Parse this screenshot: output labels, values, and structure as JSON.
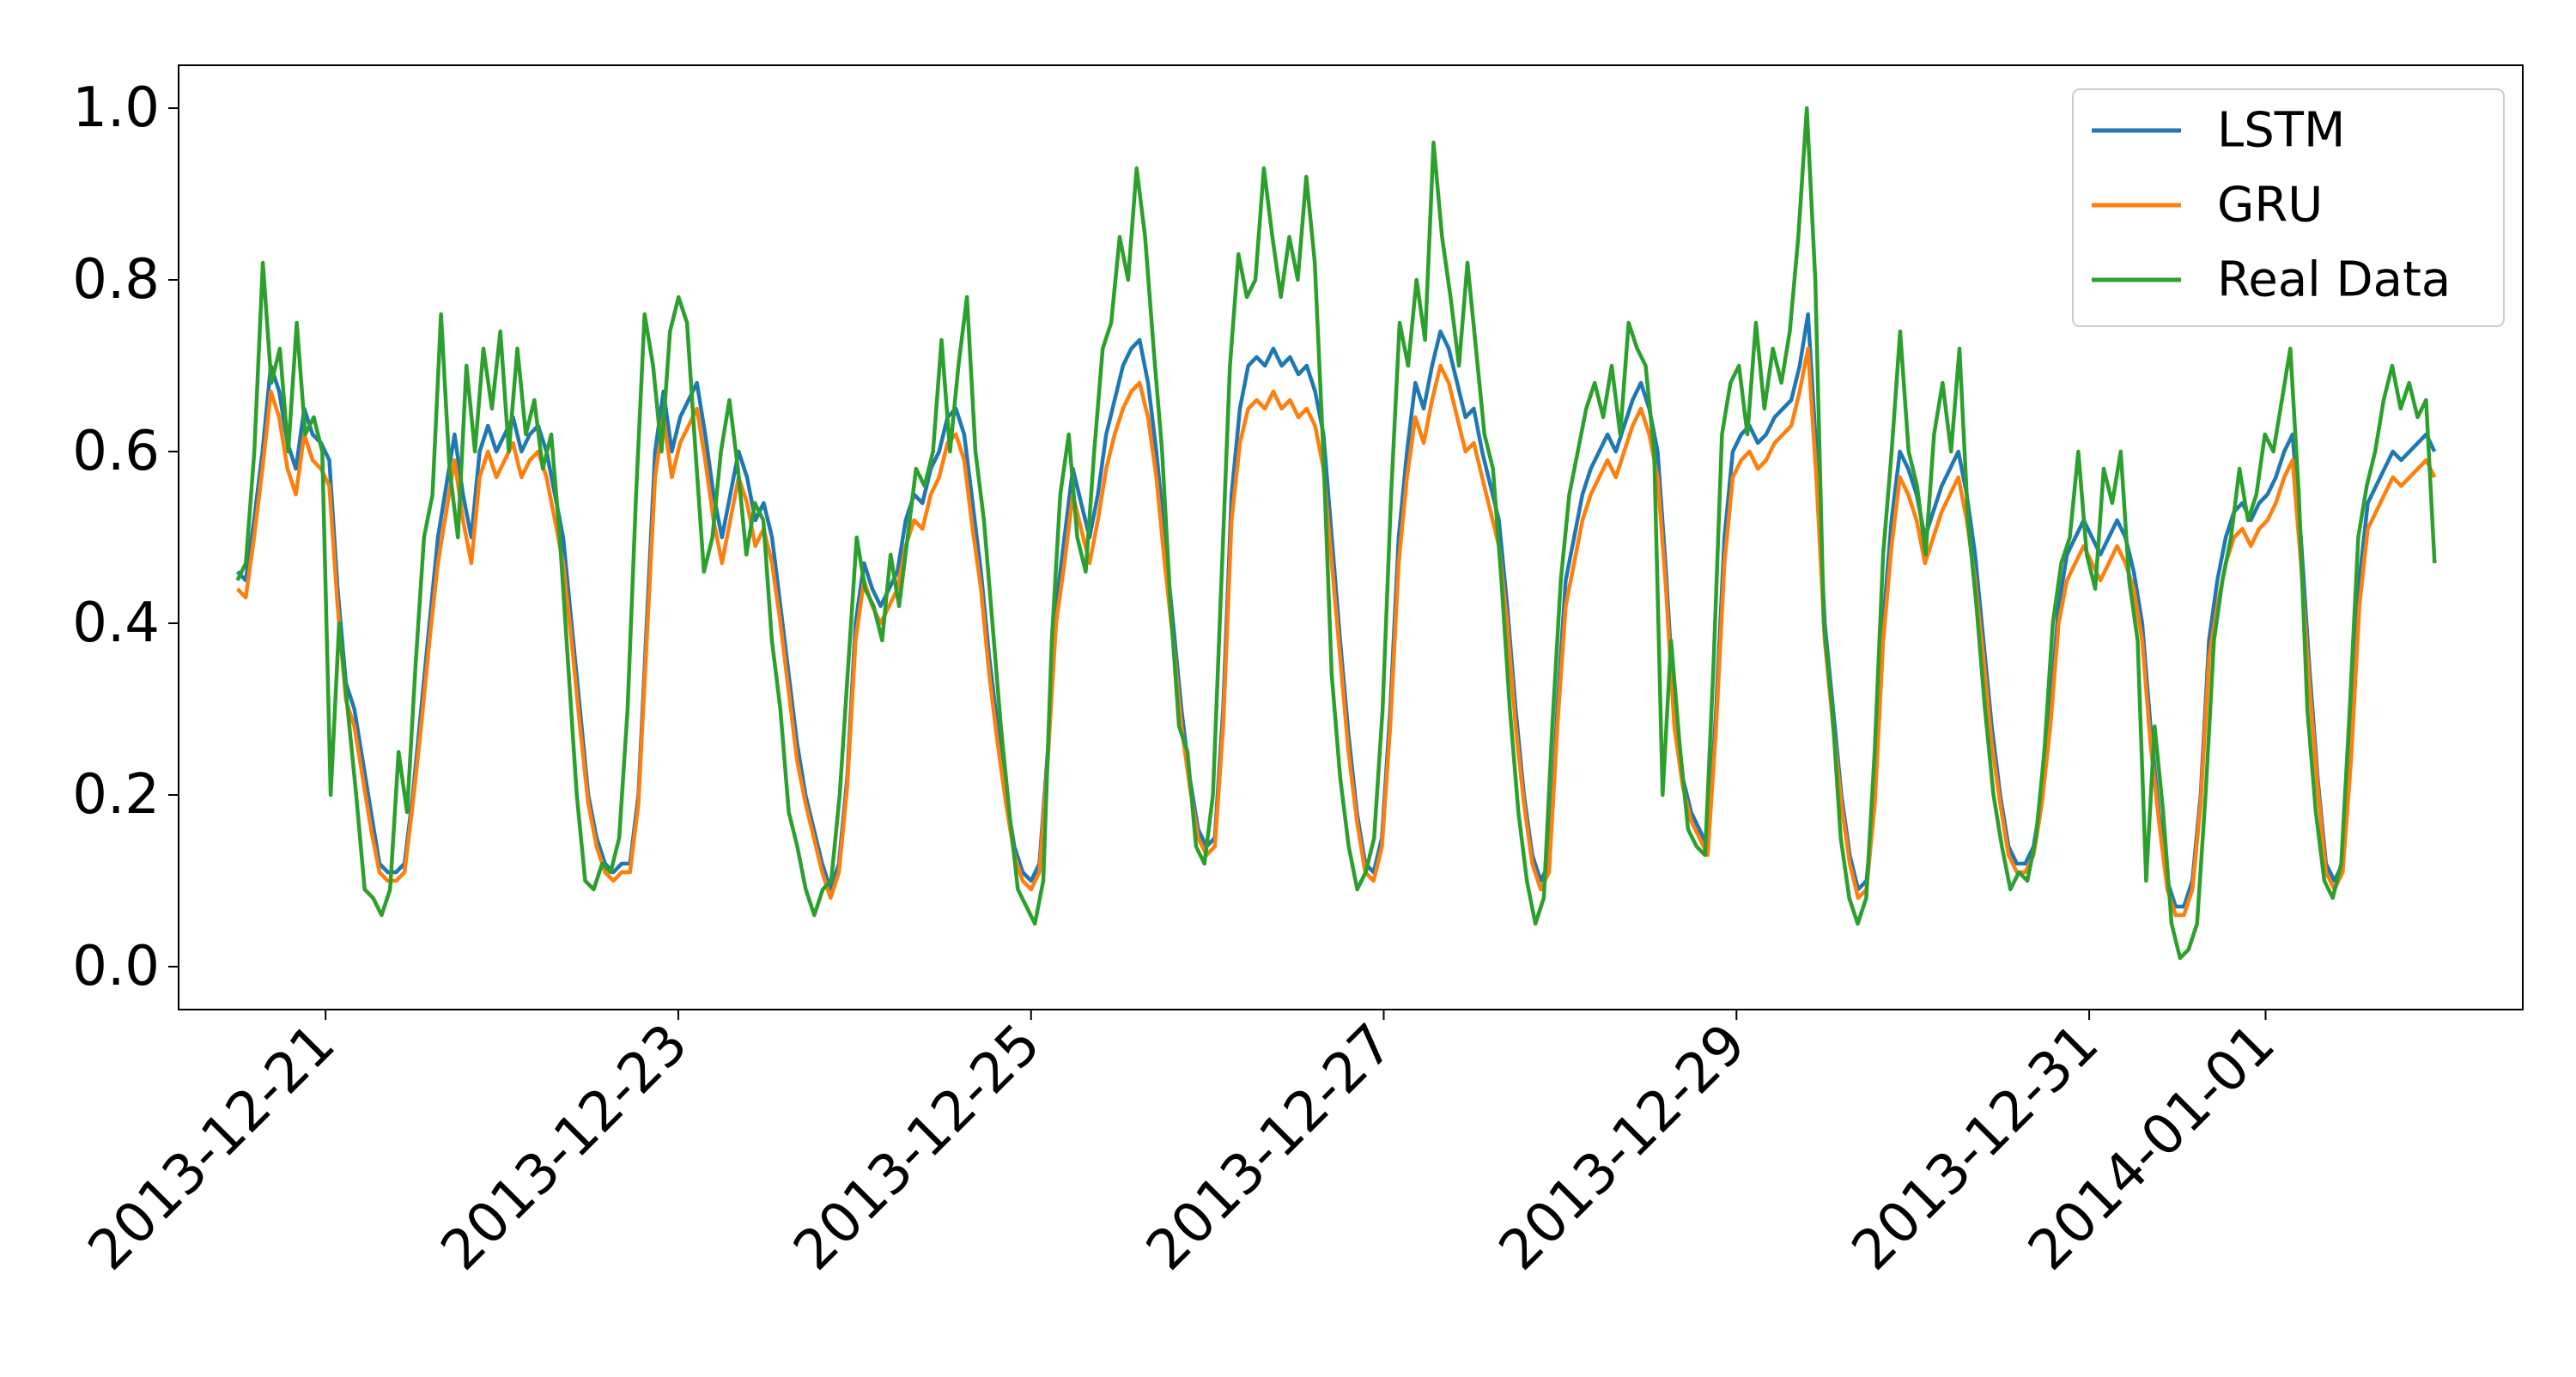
{
  "chart_data": {
    "type": "line",
    "title": "",
    "xlabel": "",
    "ylabel": "",
    "x_axis_type": "date",
    "x_start": "2013-12-20 12:00",
    "x_end": "2014-01-01 23:00",
    "xlim": [
      "2013-12-20 04:00",
      "2014-01-02 11:00"
    ],
    "ylim": [
      -0.05,
      1.05
    ],
    "y_ticks": [
      0.0,
      0.2,
      0.4,
      0.6,
      0.8,
      1.0
    ],
    "y_tick_labels": [
      "0.0",
      "0.2",
      "0.4",
      "0.6",
      "0.8",
      "1.0"
    ],
    "x_ticks": [
      "2013-12-21",
      "2013-12-23",
      "2013-12-25",
      "2013-12-27",
      "2013-12-29",
      "2013-12-31",
      "2014-01-01"
    ],
    "x_tick_labels": [
      "2013-12-21",
      "2013-12-23",
      "2013-12-25",
      "2013-12-27",
      "2013-12-29",
      "2013-12-31",
      "2014-01-01"
    ],
    "grid": false,
    "legend_position": "top-right",
    "series": [
      {
        "name": "LSTM",
        "color": "#1f77b4",
        "values": [
          0.46,
          0.45,
          0.52,
          0.6,
          0.7,
          0.67,
          0.61,
          0.58,
          0.65,
          0.62,
          0.61,
          0.59,
          0.44,
          0.33,
          0.3,
          0.24,
          0.18,
          0.12,
          0.11,
          0.11,
          0.12,
          0.2,
          0.3,
          0.4,
          0.5,
          0.56,
          0.62,
          0.55,
          0.5,
          0.6,
          0.63,
          0.6,
          0.62,
          0.64,
          0.6,
          0.62,
          0.63,
          0.6,
          0.55,
          0.5,
          0.4,
          0.3,
          0.2,
          0.15,
          0.12,
          0.11,
          0.12,
          0.12,
          0.2,
          0.4,
          0.6,
          0.67,
          0.6,
          0.64,
          0.66,
          0.68,
          0.62,
          0.55,
          0.5,
          0.55,
          0.6,
          0.57,
          0.52,
          0.54,
          0.5,
          0.42,
          0.34,
          0.26,
          0.2,
          0.16,
          0.12,
          0.09,
          0.12,
          0.22,
          0.4,
          0.47,
          0.44,
          0.42,
          0.44,
          0.46,
          0.52,
          0.55,
          0.54,
          0.58,
          0.6,
          0.64,
          0.65,
          0.62,
          0.54,
          0.46,
          0.36,
          0.28,
          0.2,
          0.14,
          0.11,
          0.1,
          0.12,
          0.25,
          0.42,
          0.5,
          0.58,
          0.54,
          0.5,
          0.55,
          0.62,
          0.66,
          0.7,
          0.72,
          0.73,
          0.68,
          0.6,
          0.5,
          0.4,
          0.3,
          0.22,
          0.16,
          0.14,
          0.15,
          0.3,
          0.55,
          0.65,
          0.7,
          0.71,
          0.7,
          0.72,
          0.7,
          0.71,
          0.69,
          0.7,
          0.67,
          0.62,
          0.5,
          0.38,
          0.27,
          0.18,
          0.12,
          0.11,
          0.15,
          0.3,
          0.5,
          0.6,
          0.68,
          0.65,
          0.7,
          0.74,
          0.72,
          0.68,
          0.64,
          0.65,
          0.6,
          0.56,
          0.52,
          0.42,
          0.3,
          0.2,
          0.13,
          0.1,
          0.12,
          0.3,
          0.45,
          0.5,
          0.55,
          0.58,
          0.6,
          0.62,
          0.6,
          0.63,
          0.66,
          0.68,
          0.65,
          0.6,
          0.46,
          0.3,
          0.22,
          0.18,
          0.16,
          0.14,
          0.3,
          0.5,
          0.6,
          0.62,
          0.63,
          0.61,
          0.62,
          0.64,
          0.65,
          0.66,
          0.7,
          0.76,
          0.6,
          0.4,
          0.3,
          0.2,
          0.13,
          0.09,
          0.1,
          0.2,
          0.4,
          0.52,
          0.6,
          0.58,
          0.55,
          0.5,
          0.53,
          0.56,
          0.58,
          0.6,
          0.55,
          0.48,
          0.38,
          0.28,
          0.2,
          0.14,
          0.12,
          0.12,
          0.14,
          0.2,
          0.3,
          0.42,
          0.48,
          0.5,
          0.52,
          0.5,
          0.48,
          0.5,
          0.52,
          0.5,
          0.46,
          0.4,
          0.28,
          0.18,
          0.1,
          0.07,
          0.07,
          0.1,
          0.2,
          0.38,
          0.45,
          0.5,
          0.53,
          0.54,
          0.52,
          0.54,
          0.55,
          0.57,
          0.6,
          0.62,
          0.5,
          0.35,
          0.22,
          0.12,
          0.1,
          0.12,
          0.25,
          0.45,
          0.54,
          0.56,
          0.58,
          0.6,
          0.59,
          0.6,
          0.61,
          0.62,
          0.6
        ]
      },
      {
        "name": "GRU",
        "color": "#ff7f0e",
        "values": [
          0.44,
          0.43,
          0.5,
          0.58,
          0.67,
          0.64,
          0.58,
          0.55,
          0.62,
          0.59,
          0.58,
          0.56,
          0.42,
          0.31,
          0.28,
          0.22,
          0.16,
          0.11,
          0.1,
          0.1,
          0.11,
          0.19,
          0.28,
          0.38,
          0.47,
          0.53,
          0.59,
          0.52,
          0.47,
          0.57,
          0.6,
          0.57,
          0.59,
          0.61,
          0.57,
          0.59,
          0.6,
          0.57,
          0.52,
          0.47,
          0.38,
          0.28,
          0.19,
          0.14,
          0.11,
          0.1,
          0.11,
          0.11,
          0.19,
          0.38,
          0.57,
          0.64,
          0.57,
          0.61,
          0.63,
          0.65,
          0.59,
          0.52,
          0.47,
          0.52,
          0.57,
          0.54,
          0.49,
          0.51,
          0.47,
          0.4,
          0.32,
          0.24,
          0.19,
          0.15,
          0.11,
          0.08,
          0.11,
          0.21,
          0.38,
          0.45,
          0.42,
          0.4,
          0.42,
          0.44,
          0.49,
          0.52,
          0.51,
          0.55,
          0.57,
          0.61,
          0.62,
          0.59,
          0.51,
          0.44,
          0.34,
          0.26,
          0.19,
          0.13,
          0.1,
          0.09,
          0.11,
          0.24,
          0.4,
          0.47,
          0.55,
          0.51,
          0.47,
          0.52,
          0.58,
          0.62,
          0.65,
          0.67,
          0.68,
          0.64,
          0.57,
          0.47,
          0.38,
          0.28,
          0.21,
          0.15,
          0.13,
          0.14,
          0.28,
          0.52,
          0.61,
          0.65,
          0.66,
          0.65,
          0.67,
          0.65,
          0.66,
          0.64,
          0.65,
          0.63,
          0.58,
          0.47,
          0.36,
          0.25,
          0.17,
          0.11,
          0.1,
          0.14,
          0.28,
          0.47,
          0.57,
          0.64,
          0.61,
          0.66,
          0.7,
          0.68,
          0.64,
          0.6,
          0.61,
          0.57,
          0.53,
          0.49,
          0.4,
          0.28,
          0.19,
          0.12,
          0.09,
          0.11,
          0.28,
          0.42,
          0.47,
          0.52,
          0.55,
          0.57,
          0.59,
          0.57,
          0.6,
          0.63,
          0.65,
          0.62,
          0.57,
          0.44,
          0.28,
          0.21,
          0.17,
          0.15,
          0.13,
          0.28,
          0.47,
          0.57,
          0.59,
          0.6,
          0.58,
          0.59,
          0.61,
          0.62,
          0.63,
          0.67,
          0.72,
          0.57,
          0.38,
          0.28,
          0.19,
          0.12,
          0.08,
          0.09,
          0.19,
          0.38,
          0.49,
          0.57,
          0.55,
          0.52,
          0.47,
          0.5,
          0.53,
          0.55,
          0.57,
          0.52,
          0.45,
          0.36,
          0.26,
          0.19,
          0.13,
          0.11,
          0.11,
          0.13,
          0.19,
          0.28,
          0.4,
          0.45,
          0.47,
          0.49,
          0.47,
          0.45,
          0.47,
          0.49,
          0.47,
          0.44,
          0.38,
          0.26,
          0.17,
          0.09,
          0.06,
          0.06,
          0.09,
          0.19,
          0.36,
          0.42,
          0.47,
          0.5,
          0.51,
          0.49,
          0.51,
          0.52,
          0.54,
          0.57,
          0.59,
          0.47,
          0.33,
          0.21,
          0.11,
          0.09,
          0.11,
          0.24,
          0.42,
          0.51,
          0.53,
          0.55,
          0.57,
          0.56,
          0.57,
          0.58,
          0.59,
          0.57
        ]
      },
      {
        "name": "Real Data",
        "color": "#2ca02c",
        "values": [
          0.45,
          0.47,
          0.6,
          0.82,
          0.68,
          0.72,
          0.6,
          0.75,
          0.62,
          0.64,
          0.6,
          0.2,
          0.4,
          0.3,
          0.2,
          0.09,
          0.08,
          0.06,
          0.09,
          0.25,
          0.18,
          0.35,
          0.5,
          0.55,
          0.76,
          0.58,
          0.5,
          0.7,
          0.6,
          0.72,
          0.65,
          0.74,
          0.6,
          0.72,
          0.62,
          0.66,
          0.58,
          0.62,
          0.5,
          0.35,
          0.2,
          0.1,
          0.09,
          0.12,
          0.11,
          0.15,
          0.3,
          0.55,
          0.76,
          0.7,
          0.6,
          0.74,
          0.78,
          0.75,
          0.6,
          0.46,
          0.5,
          0.6,
          0.66,
          0.58,
          0.48,
          0.54,
          0.52,
          0.38,
          0.3,
          0.18,
          0.14,
          0.09,
          0.06,
          0.09,
          0.1,
          0.2,
          0.35,
          0.5,
          0.44,
          0.42,
          0.38,
          0.48,
          0.42,
          0.5,
          0.58,
          0.56,
          0.6,
          0.73,
          0.6,
          0.7,
          0.78,
          0.6,
          0.52,
          0.4,
          0.28,
          0.18,
          0.09,
          0.07,
          0.05,
          0.1,
          0.38,
          0.55,
          0.62,
          0.5,
          0.46,
          0.6,
          0.72,
          0.75,
          0.85,
          0.8,
          0.93,
          0.85,
          0.72,
          0.6,
          0.42,
          0.28,
          0.25,
          0.14,
          0.12,
          0.2,
          0.45,
          0.7,
          0.83,
          0.78,
          0.8,
          0.93,
          0.85,
          0.78,
          0.85,
          0.8,
          0.92,
          0.82,
          0.6,
          0.34,
          0.22,
          0.14,
          0.09,
          0.11,
          0.15,
          0.3,
          0.55,
          0.75,
          0.7,
          0.8,
          0.73,
          0.96,
          0.85,
          0.78,
          0.7,
          0.82,
          0.72,
          0.62,
          0.58,
          0.45,
          0.3,
          0.18,
          0.1,
          0.05,
          0.08,
          0.28,
          0.45,
          0.55,
          0.6,
          0.65,
          0.68,
          0.64,
          0.7,
          0.62,
          0.75,
          0.72,
          0.7,
          0.6,
          0.2,
          0.38,
          0.26,
          0.16,
          0.14,
          0.13,
          0.35,
          0.62,
          0.68,
          0.7,
          0.62,
          0.75,
          0.65,
          0.72,
          0.68,
          0.74,
          0.85,
          1.0,
          0.8,
          0.4,
          0.3,
          0.15,
          0.08,
          0.05,
          0.08,
          0.25,
          0.48,
          0.6,
          0.74,
          0.6,
          0.56,
          0.48,
          0.62,
          0.68,
          0.6,
          0.72,
          0.52,
          0.42,
          0.3,
          0.2,
          0.14,
          0.09,
          0.11,
          0.1,
          0.15,
          0.25,
          0.4,
          0.47,
          0.5,
          0.6,
          0.48,
          0.44,
          0.58,
          0.54,
          0.6,
          0.45,
          0.38,
          0.1,
          0.28,
          0.18,
          0.05,
          0.01,
          0.02,
          0.05,
          0.2,
          0.38,
          0.45,
          0.5,
          0.58,
          0.52,
          0.55,
          0.62,
          0.6,
          0.66,
          0.72,
          0.55,
          0.3,
          0.18,
          0.1,
          0.08,
          0.12,
          0.3,
          0.5,
          0.56,
          0.6,
          0.66,
          0.7,
          0.65,
          0.68,
          0.64,
          0.66,
          0.47
        ]
      }
    ]
  }
}
